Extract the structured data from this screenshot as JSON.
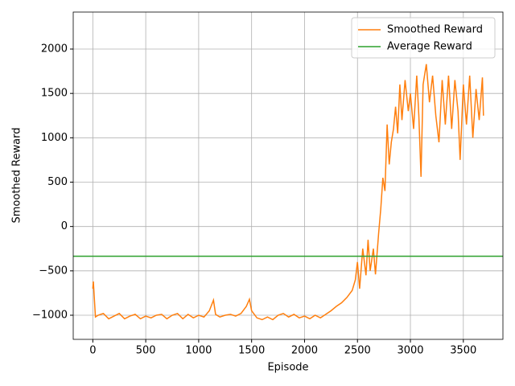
{
  "chart_data": {
    "type": "line",
    "xlabel": "Episode",
    "ylabel": "Smoothed Reward",
    "series": [
      {
        "name": "Smoothed Reward",
        "color": "#ff7f0e",
        "x": [
          0,
          5,
          25,
          50,
          100,
          150,
          200,
          250,
          300,
          350,
          400,
          450,
          500,
          550,
          600,
          650,
          700,
          750,
          800,
          850,
          900,
          950,
          1000,
          1050,
          1100,
          1140,
          1160,
          1200,
          1250,
          1300,
          1350,
          1400,
          1450,
          1480,
          1500,
          1550,
          1600,
          1650,
          1700,
          1750,
          1800,
          1850,
          1900,
          1950,
          2000,
          2050,
          2100,
          2150,
          2200,
          2250,
          2300,
          2350,
          2400,
          2450,
          2480,
          2500,
          2520,
          2550,
          2580,
          2600,
          2620,
          2650,
          2670,
          2700,
          2720,
          2740,
          2760,
          2780,
          2800,
          2820,
          2840,
          2860,
          2880,
          2900,
          2920,
          2950,
          2980,
          3000,
          3030,
          3060,
          3080,
          3100,
          3120,
          3150,
          3180,
          3210,
          3240,
          3270,
          3300,
          3330,
          3360,
          3390,
          3420,
          3450,
          3470,
          3500,
          3530,
          3560,
          3590,
          3620,
          3650,
          3680,
          3690
        ],
        "values": [
          -700,
          -620,
          -1020,
          -1000,
          -980,
          -1040,
          -1010,
          -980,
          -1040,
          -1010,
          -990,
          -1040,
          -1010,
          -1030,
          -1000,
          -990,
          -1040,
          -1000,
          -980,
          -1040,
          -990,
          -1030,
          -1000,
          -1020,
          -950,
          -830,
          -990,
          -1020,
          -1000,
          -990,
          -1010,
          -980,
          -900,
          -820,
          -950,
          -1030,
          -1050,
          -1020,
          -1050,
          -1000,
          -980,
          -1020,
          -990,
          -1030,
          -1010,
          -1040,
          -1000,
          -1030,
          -990,
          -950,
          -900,
          -860,
          -800,
          -720,
          -600,
          -400,
          -700,
          -250,
          -550,
          -150,
          -500,
          -250,
          -540,
          -80,
          200,
          550,
          400,
          1150,
          700,
          950,
          1100,
          1350,
          1050,
          1600,
          1200,
          1650,
          1300,
          1500,
          1100,
          1700,
          1250,
          560,
          1600,
          1830,
          1400,
          1700,
          1250,
          950,
          1650,
          1150,
          1700,
          1100,
          1650,
          1300,
          750,
          1600,
          1150,
          1700,
          1000,
          1550,
          1200,
          1680,
          1250
        ]
      }
    ],
    "hlines": [
      {
        "name": "Average Reward",
        "color": "#2ca02c",
        "y": -335
      }
    ],
    "xlim": [
      -185,
      3874
    ],
    "ylim": [
      -1272,
      2417
    ],
    "xticks": [
      0,
      500,
      1000,
      1500,
      2000,
      2500,
      3000,
      3500
    ],
    "yticks": [
      {
        "value": -1000,
        "label": "−1000"
      },
      {
        "value": -500,
        "label": "−500"
      },
      0,
      500,
      1000,
      1500,
      2000
    ],
    "grid": true,
    "legend": "upper right"
  }
}
